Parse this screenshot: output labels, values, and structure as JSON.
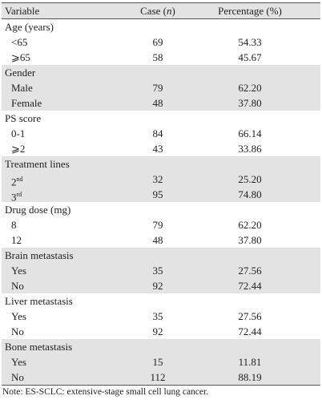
{
  "header": {
    "variable": "Variable",
    "case": [
      "Case (",
      "n",
      ")"
    ],
    "percentage": "Percentage (%)"
  },
  "groups": [
    {
      "title": "Age (years)",
      "rows": [
        {
          "label": "<65",
          "case": "69",
          "pct": "54.33"
        },
        {
          "label": "⩾65",
          "case": "58",
          "pct": "45.67"
        }
      ]
    },
    {
      "title": "Gender",
      "rows": [
        {
          "label": "Male",
          "case": "79",
          "pct": "62.20"
        },
        {
          "label": "Female",
          "case": "48",
          "pct": "37.80"
        }
      ]
    },
    {
      "title": "PS score",
      "rows": [
        {
          "label": "0-1",
          "case": "84",
          "pct": "66.14"
        },
        {
          "label": "⩾2",
          "case": "43",
          "pct": "33.86"
        }
      ]
    },
    {
      "title": "Treatment lines",
      "rows": [
        {
          "label": "2",
          "sup": "nd",
          "case": "32",
          "pct": "25.20"
        },
        {
          "label": "3",
          "sup": "rd",
          "case": "95",
          "pct": "74.80"
        }
      ]
    },
    {
      "title": "Drug dose (mg)",
      "rows": [
        {
          "label": "8",
          "case": "79",
          "pct": "62.20"
        },
        {
          "label": "12",
          "case": "48",
          "pct": "37.80"
        }
      ]
    },
    {
      "title": "Brain metastasis",
      "rows": [
        {
          "label": "Yes",
          "case": "35",
          "pct": "27.56"
        },
        {
          "label": "No",
          "case": "92",
          "pct": "72.44"
        }
      ]
    },
    {
      "title": "Liver metastasis",
      "rows": [
        {
          "label": "Yes",
          "case": "35",
          "pct": "27.56"
        },
        {
          "label": "No",
          "case": "92",
          "pct": "72.44"
        }
      ]
    },
    {
      "title": "Bone metastasis",
      "rows": [
        {
          "label": "Yes",
          "case": "15",
          "pct": "11.81"
        },
        {
          "label": "No",
          "case": "112",
          "pct": "88.19"
        }
      ]
    }
  ],
  "note": "Note: ES-SCLC: extensive-stage small cell lung cancer."
}
